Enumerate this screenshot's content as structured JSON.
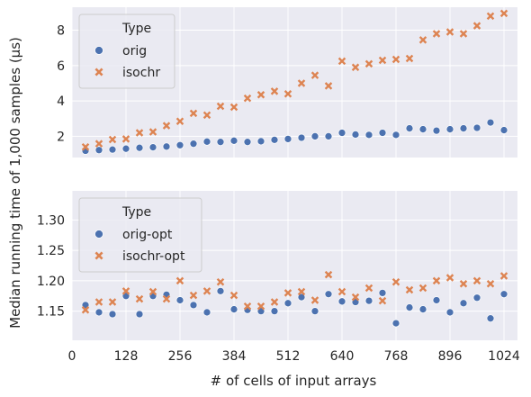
{
  "colors": {
    "panel_bg": "#eaeaf2",
    "grid": "#ffffff",
    "orig": "#4c72b0",
    "isochr": "#dd8452"
  },
  "figure": {
    "ylabel": "Median running time of 1,000 samples (µs)",
    "xlabel": "# of cells of input arrays"
  },
  "chart_data": [
    {
      "type": "scatter",
      "xlabel": "",
      "ylabel": "",
      "xlim": [
        0,
        1056
      ],
      "ylim": [
        0.8,
        9.3
      ],
      "grid": true,
      "x_ticks": [],
      "y_ticks": [
        2,
        4,
        6,
        8
      ],
      "legend": {
        "title": "Type",
        "position": "top-left"
      },
      "x": [
        32,
        64,
        96,
        128,
        160,
        192,
        224,
        256,
        288,
        320,
        352,
        384,
        416,
        448,
        480,
        512,
        544,
        576,
        608,
        640,
        672,
        704,
        736,
        768,
        800,
        832,
        864,
        896,
        928,
        960,
        992,
        1024
      ],
      "series": [
        {
          "name": "orig",
          "marker": "circle",
          "values": [
            1.18,
            1.22,
            1.25,
            1.3,
            1.35,
            1.38,
            1.42,
            1.5,
            1.58,
            1.7,
            1.68,
            1.75,
            1.68,
            1.72,
            1.8,
            1.85,
            1.92,
            2.0,
            2.0,
            2.2,
            2.1,
            2.08,
            2.2,
            2.08,
            2.45,
            2.4,
            2.32,
            2.4,
            2.45,
            2.48,
            2.78,
            2.35
          ]
        },
        {
          "name": "isochr",
          "marker": "x",
          "values": [
            1.4,
            1.58,
            1.82,
            1.85,
            2.2,
            2.25,
            2.6,
            2.85,
            3.3,
            3.2,
            3.7,
            3.65,
            4.15,
            4.35,
            4.55,
            4.4,
            5.0,
            5.45,
            4.85,
            6.25,
            5.9,
            6.1,
            6.3,
            6.35,
            6.4,
            7.45,
            7.8,
            7.9,
            7.8,
            8.25,
            8.8,
            8.95
          ]
        }
      ]
    },
    {
      "type": "scatter",
      "xlabel": "",
      "ylabel": "",
      "xlim": [
        0,
        1056
      ],
      "ylim": [
        1.102,
        1.348
      ],
      "grid": true,
      "x_ticks": [
        0,
        128,
        256,
        384,
        512,
        640,
        768,
        896,
        1024
      ],
      "y_ticks": [
        1.15,
        1.2,
        1.25,
        1.3
      ],
      "legend": {
        "title": "Type",
        "position": "top-left"
      },
      "x": [
        32,
        64,
        96,
        128,
        160,
        192,
        224,
        256,
        288,
        320,
        352,
        384,
        416,
        448,
        480,
        512,
        544,
        576,
        608,
        640,
        672,
        704,
        736,
        768,
        800,
        832,
        864,
        896,
        928,
        960,
        992,
        1024
      ],
      "series": [
        {
          "name": "orig-opt",
          "marker": "circle",
          "values": [
            1.16,
            1.148,
            1.145,
            1.175,
            1.145,
            1.175,
            1.177,
            1.168,
            1.16,
            1.148,
            1.183,
            1.153,
            1.152,
            1.15,
            1.15,
            1.163,
            1.173,
            1.15,
            1.178,
            1.166,
            1.165,
            1.167,
            1.18,
            1.13,
            1.156,
            1.153,
            1.168,
            1.148,
            1.163,
            1.172,
            1.138,
            1.178
          ]
        },
        {
          "name": "isochr-opt",
          "marker": "x",
          "values": [
            1.152,
            1.165,
            1.165,
            1.183,
            1.17,
            1.182,
            1.17,
            1.2,
            1.176,
            1.183,
            1.198,
            1.176,
            1.158,
            1.158,
            1.165,
            1.18,
            1.182,
            1.168,
            1.21,
            1.182,
            1.173,
            1.188,
            1.167,
            1.198,
            1.185,
            1.188,
            1.2,
            1.205,
            1.195,
            1.2,
            1.195,
            1.208
          ]
        }
      ]
    }
  ]
}
